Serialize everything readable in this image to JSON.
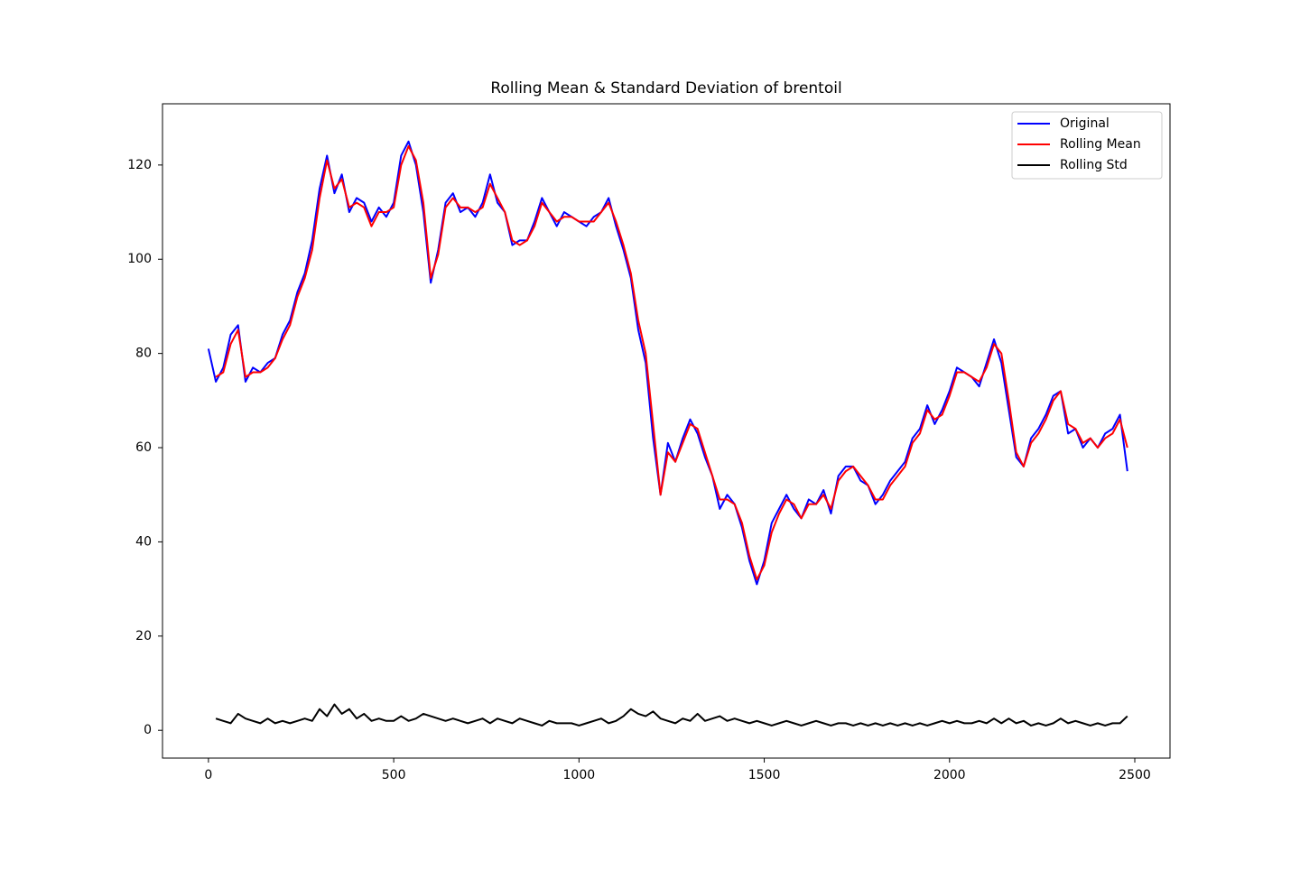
{
  "chart_data": {
    "type": "line",
    "title": "Rolling Mean & Standard Deviation of brentoil",
    "x": [
      0,
      20,
      40,
      60,
      80,
      100,
      120,
      140,
      160,
      180,
      200,
      220,
      240,
      260,
      280,
      300,
      320,
      340,
      360,
      380,
      400,
      420,
      440,
      460,
      480,
      500,
      520,
      540,
      560,
      580,
      600,
      620,
      640,
      660,
      680,
      700,
      720,
      740,
      760,
      780,
      800,
      820,
      840,
      860,
      880,
      900,
      920,
      940,
      960,
      980,
      1000,
      1020,
      1040,
      1060,
      1080,
      1100,
      1120,
      1140,
      1160,
      1180,
      1200,
      1220,
      1240,
      1260,
      1280,
      1300,
      1320,
      1340,
      1360,
      1380,
      1400,
      1420,
      1440,
      1460,
      1480,
      1500,
      1520,
      1540,
      1560,
      1580,
      1600,
      1620,
      1640,
      1660,
      1680,
      1700,
      1720,
      1740,
      1760,
      1780,
      1800,
      1820,
      1840,
      1860,
      1880,
      1900,
      1920,
      1940,
      1960,
      1980,
      2000,
      2020,
      2040,
      2060,
      2080,
      2100,
      2120,
      2140,
      2160,
      2180,
      2200,
      2220,
      2240,
      2260,
      2280,
      2300,
      2320,
      2340,
      2360,
      2380,
      2400,
      2420,
      2440,
      2460,
      2480
    ],
    "series": [
      {
        "name": "Original",
        "color": "#0000ff",
        "values": [
          81,
          74,
          77,
          84,
          86,
          74,
          77,
          76,
          78,
          79,
          84,
          87,
          93,
          97,
          104,
          115,
          122,
          114,
          118,
          110,
          113,
          112,
          108,
          111,
          109,
          112,
          122,
          125,
          120,
          110,
          95,
          102,
          112,
          114,
          110,
          111,
          109,
          112,
          118,
          112,
          110,
          103,
          104,
          104,
          108,
          113,
          110,
          107,
          110,
          109,
          108,
          107,
          109,
          110,
          113,
          107,
          102,
          96,
          85,
          78,
          62,
          50,
          61,
          57,
          62,
          66,
          63,
          58,
          54,
          47,
          50,
          48,
          43,
          36,
          31,
          36,
          44,
          47,
          50,
          47,
          45,
          49,
          48,
          51,
          46,
          54,
          56,
          56,
          53,
          52,
          48,
          50,
          53,
          55,
          57,
          62,
          64,
          69,
          65,
          68,
          72,
          77,
          76,
          75,
          73,
          78,
          83,
          78,
          68,
          58,
          56,
          62,
          64,
          67,
          71,
          72,
          63,
          64,
          60,
          62,
          60,
          63,
          64,
          67,
          55
        ]
      },
      {
        "name": "Rolling Mean",
        "color": "#ff0000",
        "values": [
          null,
          75,
          76,
          82,
          85,
          75,
          76,
          76,
          77,
          79,
          83,
          86,
          92,
          96,
          102,
          113,
          121,
          115,
          117,
          111,
          112,
          111,
          107,
          110,
          110,
          111,
          120,
          124,
          121,
          112,
          96,
          101,
          111,
          113,
          111,
          111,
          110,
          111,
          116,
          113,
          110,
          104,
          103,
          104,
          107,
          112,
          110,
          108,
          109,
          109,
          108,
          108,
          108,
          110,
          112,
          108,
          103,
          97,
          87,
          80,
          65,
          50,
          59,
          57,
          61,
          65,
          64,
          59,
          54,
          49,
          49,
          48,
          44,
          37,
          32,
          35,
          42,
          46,
          49,
          48,
          45,
          48,
          48,
          50,
          47,
          53,
          55,
          56,
          54,
          52,
          49,
          49,
          52,
          54,
          56,
          61,
          63,
          68,
          66,
          67,
          71,
          76,
          76,
          75,
          74,
          77,
          82,
          80,
          70,
          59,
          56,
          61,
          63,
          66,
          70,
          72,
          65,
          64,
          61,
          62,
          60,
          62,
          63,
          66,
          60
        ]
      },
      {
        "name": "Rolling Std",
        "color": "#000000",
        "values": [
          null,
          2.5,
          2,
          1.5,
          3.5,
          2.5,
          2,
          1.5,
          2.5,
          1.5,
          2,
          1.5,
          2,
          2.5,
          2,
          4.5,
          3,
          5.5,
          3.5,
          4.5,
          2.5,
          3.5,
          2,
          2.5,
          2,
          2,
          3,
          2,
          2.5,
          3.5,
          3,
          2.5,
          2,
          2.5,
          2,
          1.5,
          2,
          2.5,
          1.5,
          2.5,
          2,
          1.5,
          2.5,
          2,
          1.5,
          1,
          2,
          1.5,
          1.5,
          1.5,
          1,
          1.5,
          2,
          2.5,
          1.5,
          2,
          3,
          4.5,
          3.5,
          3,
          4,
          2.5,
          2,
          1.5,
          2.5,
          2,
          3.5,
          2,
          2.5,
          3,
          2,
          2.5,
          2,
          1.5,
          2,
          1.5,
          1,
          1.5,
          2,
          1.5,
          1,
          1.5,
          2,
          1.5,
          1,
          1.5,
          1.5,
          1,
          1.5,
          1,
          1.5,
          1,
          1.5,
          1,
          1.5,
          1,
          1.5,
          1,
          1.5,
          2,
          1.5,
          2,
          1.5,
          1.5,
          2,
          1.5,
          2.5,
          1.5,
          2.5,
          1.5,
          2,
          1,
          1.5,
          1,
          1.5,
          2.5,
          1.5,
          2,
          1.5,
          1,
          1.5,
          1,
          1.5,
          1.5,
          3
        ]
      }
    ],
    "xlim": [
      -124,
      2595
    ],
    "xticks": [
      0,
      500,
      1000,
      1500,
      2000,
      2500
    ],
    "ylim": [
      -5.9,
      133
    ],
    "yticks": [
      0,
      20,
      40,
      60,
      80,
      100,
      120
    ],
    "legend": "upper right",
    "grid": false
  }
}
